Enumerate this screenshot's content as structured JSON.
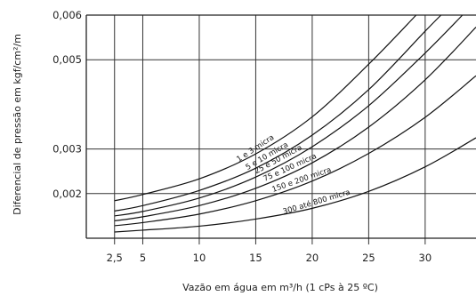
{
  "chart_data": {
    "type": "line",
    "xlabel": "Vazão em água em m³/h (1 cPs à 25 ºC)",
    "ylabel": "Diferencial de pressão em kgf/cm²/m",
    "x_ticks": [
      {
        "value": 2.5,
        "label": "2,5"
      },
      {
        "value": 5,
        "label": "5"
      },
      {
        "value": 10,
        "label": "10"
      },
      {
        "value": 15,
        "label": "15"
      },
      {
        "value": 20,
        "label": "20"
      },
      {
        "value": 25,
        "label": "25"
      },
      {
        "value": 30,
        "label": "30"
      }
    ],
    "y_ticks": [
      {
        "value": 0.002,
        "label": "0,002"
      },
      {
        "value": 0.003,
        "label": "0,003"
      },
      {
        "value": 0.005,
        "label": "0,005"
      },
      {
        "value": 0.006,
        "label": "0,006"
      }
    ],
    "xlim": [
      0,
      34.5
    ],
    "ylim": [
      0.001,
      0.006
    ],
    "grid": true,
    "series": [
      {
        "name": "1 e 3 micra",
        "x": [
          2.5,
          5,
          10,
          15,
          20,
          25,
          29.2
        ],
        "y": [
          0.00184,
          0.00198,
          0.00233,
          0.00289,
          0.00372,
          0.0049,
          0.006
        ]
      },
      {
        "name": "5 e 10 micra",
        "x": [
          2.5,
          5,
          10,
          15,
          20,
          25,
          30,
          31.4
        ],
        "y": [
          0.00161,
          0.00173,
          0.00207,
          0.00257,
          0.00331,
          0.00433,
          0.00564,
          0.006
        ]
      },
      {
        "name": "25 e 50 micra",
        "x": [
          2.5,
          5,
          10,
          15,
          20,
          25,
          30,
          33.3
        ],
        "y": [
          0.0015,
          0.0016,
          0.0019,
          0.00237,
          0.00305,
          0.00397,
          0.00515,
          0.006
        ]
      },
      {
        "name": "75 e 100 micra",
        "x": [
          2.5,
          5,
          10,
          15,
          20,
          25,
          30,
          34.5
        ],
        "y": [
          0.00139,
          0.00148,
          0.00173,
          0.00212,
          0.00269,
          0.00349,
          0.00455,
          0.00573
        ]
      },
      {
        "name": "150 e 200 micra",
        "x": [
          2.5,
          5,
          10,
          15,
          20,
          25,
          30,
          34.5
        ],
        "y": [
          0.00128,
          0.00135,
          0.00154,
          0.00184,
          0.00228,
          0.0029,
          0.00371,
          0.00464
        ]
      },
      {
        "name": "300 até 800 micra",
        "x": [
          2.5,
          5,
          10,
          15,
          20,
          25,
          30,
          34.5
        ],
        "y": [
          0.00114,
          0.00118,
          0.00127,
          0.00143,
          0.00167,
          0.00205,
          0.0026,
          0.00325
        ]
      }
    ]
  }
}
